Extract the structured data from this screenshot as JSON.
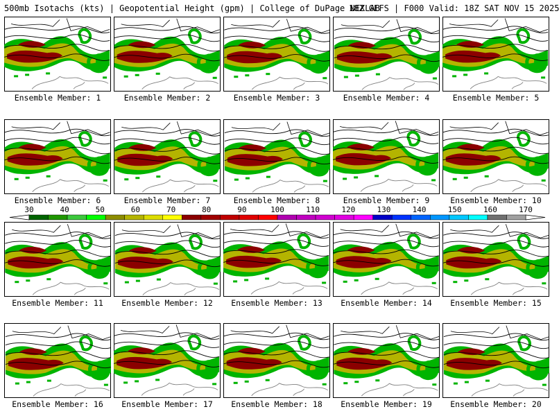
{
  "header": {
    "left": "500mb Isotachs (kts) | Geopotential Height (gpm) | College of DuPage NEXLAB",
    "right": "18Z GEFS | F000 Valid: 18Z SAT NOV 15 2025"
  },
  "panel_label_prefix": "Ensemble Member: ",
  "members": [
    "1",
    "2",
    "3",
    "4",
    "5",
    "6",
    "7",
    "8",
    "9",
    "10",
    "11",
    "12",
    "13",
    "14",
    "15",
    "16",
    "17",
    "18",
    "19",
    "20"
  ],
  "colorbar": {
    "tick_labels": [
      "30",
      "40",
      "50",
      "60",
      "70",
      "80",
      "90",
      "100",
      "110",
      "120",
      "130",
      "140",
      "150",
      "160",
      "170"
    ],
    "colors": [
      "#006400",
      "#1e9600",
      "#3cc83c",
      "#00ff00",
      "#8c8c00",
      "#b4b400",
      "#dcdc00",
      "#ffff00",
      "#8b0000",
      "#a00000",
      "#c00000",
      "#e00000",
      "#ff0000",
      "#b000b0",
      "#c000c0",
      "#d000d0",
      "#e000e0",
      "#ff00ff",
      "#0000c8",
      "#0032ff",
      "#0064ff",
      "#0096ff",
      "#00c8ff",
      "#00ffff",
      "#707070",
      "#a0a0a0"
    ]
  },
  "map_colors": {
    "weak": "#00b400",
    "moderate": "#b4b400",
    "strong": "#8b0000",
    "contour": "#000000",
    "coast": "#808080"
  }
}
